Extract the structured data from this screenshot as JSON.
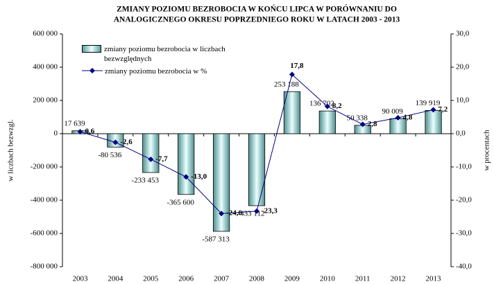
{
  "chart_data": {
    "type": "bar",
    "title": "ZMIANY POZIOMU BEZROBOCIA W  KOŃCU  LIPCA W  PORÓWNANIU DO",
    "subtitle": "ANALOGICZNEGO  OKRESU POPRZEDNIEGO  ROKU   W LATACH  2003 - 2013",
    "y_label": "w liczbach bezwzgl.",
    "y2_label": "w procentach",
    "categories": [
      "2003",
      "2004",
      "2005",
      "2006",
      "2007",
      "2008",
      "2009",
      "2010",
      "2011",
      "2012",
      "2013"
    ],
    "series": [
      {
        "name": "zmiany poziomu bezrobocia w liczbach bezwzględnych",
        "type": "bar",
        "color": "#8fcccc",
        "values": [
          17639,
          -80536,
          -233453,
          -365600,
          -587313,
          -433112,
          253188,
          136702,
          50338,
          90009,
          139919
        ],
        "value_labels": [
          "17 639",
          "-80 536",
          "-233 453",
          "-365 600",
          "-587 313",
          "-433 112",
          "253 188",
          "136 702",
          "50 338",
          "90 009",
          "139 919"
        ]
      },
      {
        "name": "zmiany poziomu bezrobocia w %",
        "type": "line",
        "axis": "y2",
        "color": "#000080",
        "values": [
          0.6,
          -2.6,
          -7.7,
          -13.0,
          -24.0,
          -23.3,
          17.8,
          8.2,
          2.8,
          4.8,
          7.2
        ],
        "value_labels": [
          "0,6",
          "-2,6",
          "-7,7",
          "-13,0",
          "-24,0",
          "-23,3",
          "17,8",
          "8,2",
          "2,8",
          "4,8",
          "7,2"
        ]
      }
    ],
    "ylim": [
      -800000,
      600000
    ],
    "yticks": [
      {
        "value": -800000,
        "label": "-800 000"
      },
      {
        "value": -600000,
        "label": "-600 000"
      },
      {
        "value": -400000,
        "label": "-400 000"
      },
      {
        "value": -200000,
        "label": "-200 000"
      },
      0,
      {
        "value": 200000,
        "label": "200 000"
      },
      {
        "value": 400000,
        "label": "400 000"
      },
      {
        "value": 600000,
        "label": "600 000"
      }
    ],
    "y2lim": [
      -40,
      30
    ],
    "y2ticks": [
      {
        "value": -40,
        "label": "-40,0"
      },
      {
        "value": -30,
        "label": "-30,0"
      },
      {
        "value": -20,
        "label": "-20,0"
      },
      {
        "value": -10,
        "label": "-10,0"
      },
      {
        "value": 0,
        "label": "0,0"
      },
      {
        "value": 10,
        "label": "10,0"
      },
      {
        "value": 20,
        "label": "20,0"
      },
      {
        "value": 30,
        "label": "30,0"
      }
    ],
    "grid": false
  }
}
